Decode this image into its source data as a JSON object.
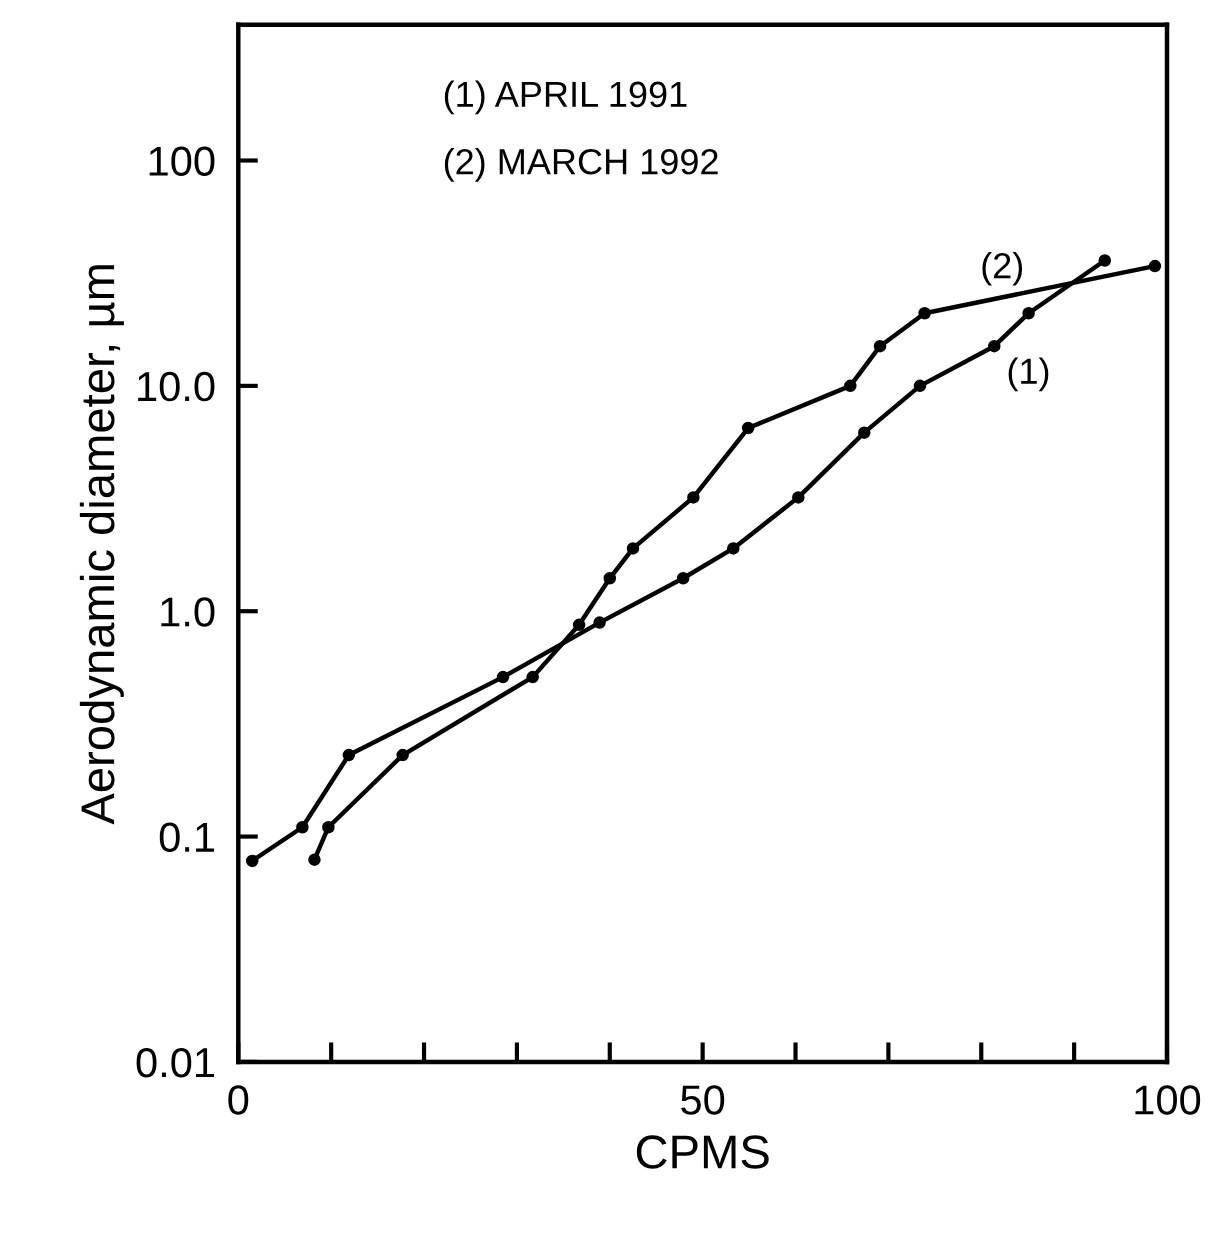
{
  "chart_data": {
    "type": "line",
    "xlabel": "CPMS",
    "ylabel": "Aerodynamic diameter, µm",
    "annotations": [
      "(1) APRIL 1991",
      "(2) MARCH 1992"
    ],
    "series": [
      {
        "name": "(1)",
        "color": "#000000",
        "x": [
          1.5,
          6.9,
          11.9,
          28.5,
          38.9,
          47.9,
          53.3,
          60.3,
          67.4,
          73.4,
          81.4,
          85.1,
          93.3
        ],
        "values": [
          0.078,
          0.11,
          0.23,
          0.51,
          0.89,
          1.4,
          1.9,
          3.2,
          6.2,
          10,
          15,
          21,
          36
        ]
      },
      {
        "name": "(2)",
        "color": "#000000",
        "x": [
          8.2,
          9.7,
          17.7,
          31.7,
          36.7,
          40.0,
          42.5,
          49.0,
          54.9,
          65.9,
          69.1,
          73.9,
          98.7
        ],
        "values": [
          0.079,
          0.11,
          0.23,
          0.51,
          0.87,
          1.4,
          1.9,
          3.2,
          6.5,
          10,
          15,
          21,
          34
        ]
      }
    ],
    "log": "y",
    "xlim": [
      0,
      100
    ],
    "ylim": [
      0.01,
      400
    ],
    "xticks": [
      0,
      {
        "value": 10,
        "label": null
      },
      {
        "value": 20,
        "label": null
      },
      {
        "value": 30,
        "label": null
      },
      {
        "value": 40,
        "label": null
      },
      50,
      {
        "value": 60,
        "label": null
      },
      {
        "value": 70,
        "label": null
      },
      {
        "value": 80,
        "label": null
      },
      {
        "value": 90,
        "label": null
      },
      100
    ],
    "yticks": [
      0.01,
      0.1,
      {
        "value": 1,
        "label": "1.0"
      },
      {
        "value": 10,
        "label": "10.0"
      },
      100
    ],
    "marker": "circle",
    "line_style": "solid",
    "grid": false,
    "legend": false
  }
}
